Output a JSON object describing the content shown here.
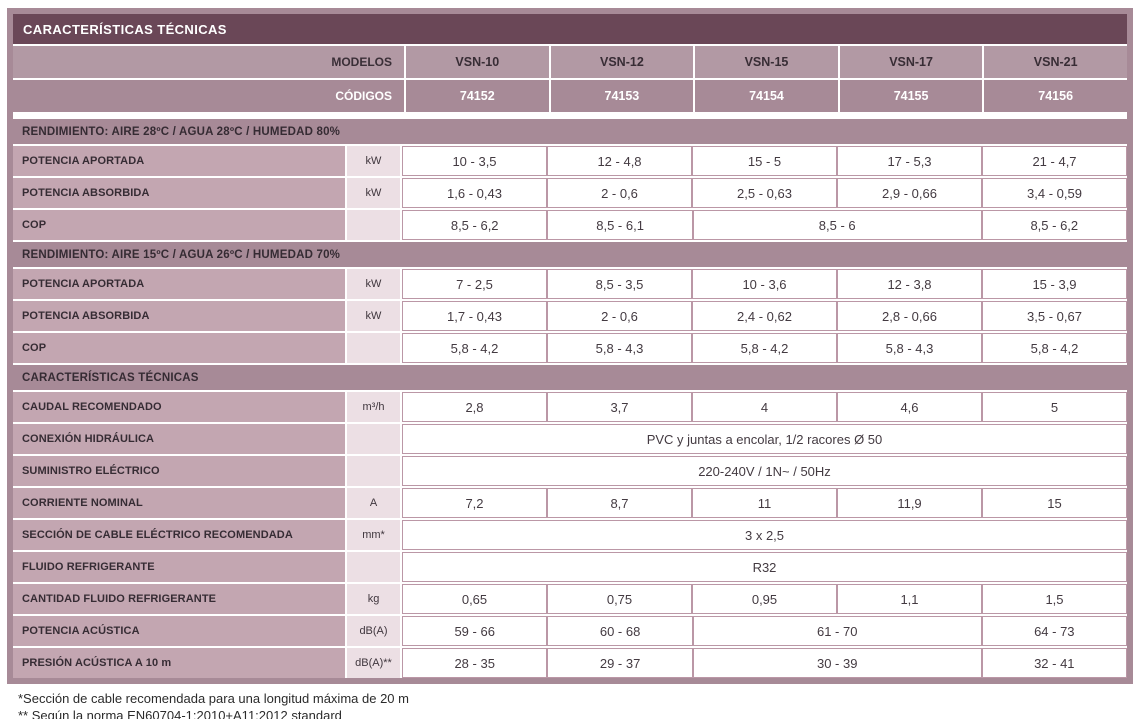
{
  "table": {
    "title": "CARACTERÍSTICAS TÉCNICAS",
    "header": {
      "models_label": "MODELOS",
      "codes_label": "CÓDIGOS",
      "models": [
        "VSN-10",
        "VSN-12",
        "VSN-15",
        "VSN-17",
        "VSN-21"
      ],
      "codes": [
        "74152",
        "74153",
        "74154",
        "74155",
        "74156"
      ]
    },
    "sections": [
      {
        "header": "RENDIMIENTO: AIRE 28ºC / AGUA 28ºC / HUMEDAD 80%",
        "rows": [
          {
            "label": "POTENCIA APORTADA",
            "unit": "kW",
            "cells": [
              {
                "text": "10 - 3,5",
                "span": 1
              },
              {
                "text": "12 - 4,8",
                "span": 1
              },
              {
                "text": "15 - 5",
                "span": 1
              },
              {
                "text": "17 - 5,3",
                "span": 1
              },
              {
                "text": "21 - 4,7",
                "span": 1
              }
            ]
          },
          {
            "label": "POTENCIA ABSORBIDA",
            "unit": "kW",
            "cells": [
              {
                "text": "1,6 - 0,43",
                "span": 1
              },
              {
                "text": "2 - 0,6",
                "span": 1
              },
              {
                "text": "2,5 - 0,63",
                "span": 1
              },
              {
                "text": "2,9 - 0,66",
                "span": 1
              },
              {
                "text": "3,4 - 0,59",
                "span": 1
              }
            ]
          },
          {
            "label": "COP",
            "unit": "",
            "cells": [
              {
                "text": "8,5 - 6,2",
                "span": 1
              },
              {
                "text": "8,5 - 6,1",
                "span": 1
              },
              {
                "text": "8,5 - 6",
                "span": 2
              },
              {
                "text": "8,5 - 6,2",
                "span": 1
              }
            ]
          }
        ]
      },
      {
        "header": "RENDIMIENTO: AIRE 15ºC / AGUA 26ºC / HUMEDAD 70%",
        "rows": [
          {
            "label": "POTENCIA APORTADA",
            "unit": "kW",
            "cells": [
              {
                "text": "7 - 2,5",
                "span": 1
              },
              {
                "text": "8,5 - 3,5",
                "span": 1
              },
              {
                "text": "10 - 3,6",
                "span": 1
              },
              {
                "text": "12 - 3,8",
                "span": 1
              },
              {
                "text": "15 - 3,9",
                "span": 1
              }
            ]
          },
          {
            "label": "POTENCIA ABSORBIDA",
            "unit": "kW",
            "cells": [
              {
                "text": "1,7 - 0,43",
                "span": 1
              },
              {
                "text": "2 - 0,6",
                "span": 1
              },
              {
                "text": "2,4 - 0,62",
                "span": 1
              },
              {
                "text": "2,8 - 0,66",
                "span": 1
              },
              {
                "text": "3,5 - 0,67",
                "span": 1
              }
            ]
          },
          {
            "label": "COP",
            "unit": "",
            "cells": [
              {
                "text": "5,8 - 4,2",
                "span": 1
              },
              {
                "text": "5,8 - 4,3",
                "span": 1
              },
              {
                "text": "5,8 - 4,2",
                "span": 1
              },
              {
                "text": "5,8 - 4,3",
                "span": 1
              },
              {
                "text": "5,8 - 4,2",
                "span": 1
              }
            ]
          }
        ]
      },
      {
        "header": "CARACTERÍSTICAS TÉCNICAS",
        "rows": [
          {
            "label": "CAUDAL RECOMENDADO",
            "unit": "m³/h",
            "cells": [
              {
                "text": "2,8",
                "span": 1
              },
              {
                "text": "3,7",
                "span": 1
              },
              {
                "text": "4",
                "span": 1
              },
              {
                "text": "4,6",
                "span": 1
              },
              {
                "text": "5",
                "span": 1
              }
            ]
          },
          {
            "label": "CONEXIÓN HIDRÁULICA",
            "unit": "",
            "cells": [
              {
                "text": "PVC y juntas a encolar, 1/2 racores Ø 50",
                "span": 5
              }
            ]
          },
          {
            "label": "SUMINISTRO ELÉCTRICO",
            "unit": "",
            "cells": [
              {
                "text": "220-240V / 1N~ / 50Hz",
                "span": 5
              }
            ]
          },
          {
            "label": "CORRIENTE NOMINAL",
            "unit": "A",
            "cells": [
              {
                "text": "7,2",
                "span": 1
              },
              {
                "text": "8,7",
                "span": 1
              },
              {
                "text": "11",
                "span": 1
              },
              {
                "text": "11,9",
                "span": 1
              },
              {
                "text": "15",
                "span": 1
              }
            ]
          },
          {
            "label": "SECCIÓN DE CABLE ELÉCTRICO RECOMENDADA",
            "unit": "mm*",
            "cells": [
              {
                "text": "3 x 2,5",
                "span": 5
              }
            ]
          },
          {
            "label": "FLUIDO REFRIGERANTE",
            "unit": "",
            "cells": [
              {
                "text": "R32",
                "span": 5
              }
            ]
          },
          {
            "label": "CANTIDAD FLUIDO REFRIGERANTE",
            "unit": "kg",
            "cells": [
              {
                "text": "0,65",
                "span": 1
              },
              {
                "text": "0,75",
                "span": 1
              },
              {
                "text": "0,95",
                "span": 1
              },
              {
                "text": "1,1",
                "span": 1
              },
              {
                "text": "1,5",
                "span": 1
              }
            ]
          },
          {
            "label": "POTENCIA ACÚSTICA",
            "unit": "dB(A)",
            "cells": [
              {
                "text": "59 - 66",
                "span": 1
              },
              {
                "text": "60 - 68",
                "span": 1
              },
              {
                "text": "61 - 70",
                "span": 2
              },
              {
                "text": "64 - 73",
                "span": 1
              }
            ]
          },
          {
            "label": "PRESIÓN ACÚSTICA A 10 m",
            "unit": "dB(A)**",
            "cells": [
              {
                "text": "28 - 35",
                "span": 1
              },
              {
                "text": "29 - 37",
                "span": 1
              },
              {
                "text": "30 - 39",
                "span": 2
              },
              {
                "text": "32 - 41",
                "span": 1
              }
            ]
          }
        ]
      }
    ]
  },
  "footnotes": [
    "*Sección de cable recomendada para una longitud máxima de 20 m",
    "** Según la norma EN60704-1:2010+A11:2012 standard"
  ],
  "colors": {
    "title_bg": "#6a4757",
    "frame_bg": "#a78a97",
    "models_row_bg": "#b299a4",
    "codes_row_bg": "#a78a97",
    "label_col_bg": "#c3a6b1",
    "unit_col_bg": "#ecdfe4",
    "cell_border": "#bb97a6"
  }
}
